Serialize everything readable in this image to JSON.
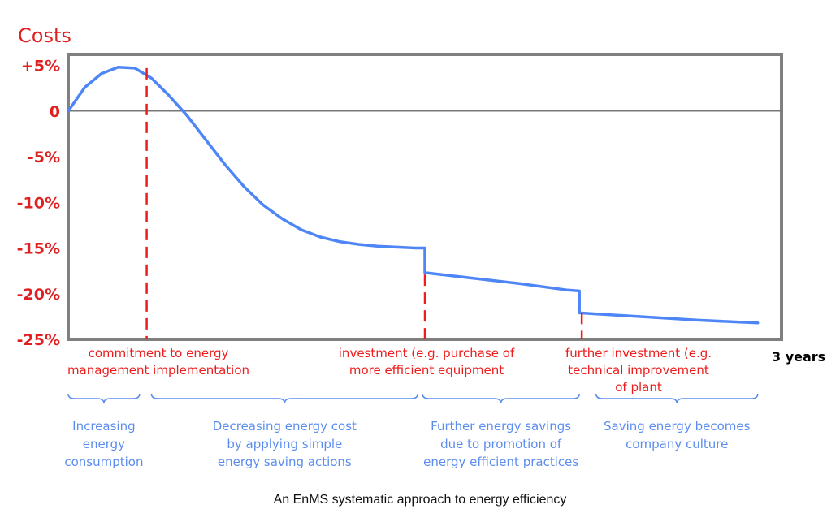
{
  "chart_data": {
    "type": "line",
    "ylabel": "Costs",
    "yticks": [
      {
        "value": 5,
        "label": "+5%"
      },
      {
        "value": 0,
        "label": "0"
      },
      {
        "value": -5,
        "label": "-5%"
      },
      {
        "value": -10,
        "label": "-10%"
      },
      {
        "value": -15,
        "label": "-15%"
      },
      {
        "value": -20,
        "label": "-20%"
      },
      {
        "value": -25,
        "label": "-25%"
      }
    ],
    "ylim": [
      -25,
      6.2
    ],
    "xlim": [
      0,
      3
    ],
    "x_end_label": "3 years",
    "series": [
      {
        "x": [
          0,
          0.07,
          0.14,
          0.21,
          0.28,
          0.35,
          0.42,
          0.5,
          0.58,
          0.66,
          0.74,
          0.82,
          0.9,
          0.98,
          1.06,
          1.14,
          1.22,
          1.3,
          1.38,
          1.46,
          1.5,
          1.5,
          1.7,
          1.9,
          2.1,
          2.15,
          2.15,
          2.4,
          2.65,
          2.9
        ],
        "values": [
          0,
          2.6,
          4.1,
          4.8,
          4.7,
          3.6,
          1.8,
          -0.5,
          -3.2,
          -5.9,
          -8.3,
          -10.3,
          -11.8,
          -13.0,
          -13.8,
          -14.3,
          -14.6,
          -14.8,
          -14.9,
          -15.0,
          -15.0,
          -17.7,
          -18.3,
          -18.9,
          -19.6,
          -19.7,
          -22.1,
          -22.5,
          -22.9,
          -23.2
        ]
      }
    ],
    "events": [
      {
        "x": 0.3,
        "lines": [
          "commitment to energy",
          "management implementation"
        ]
      },
      {
        "x": 1.3,
        "lines": [
          "investment (e.g. purchase of",
          "more efficient equipment"
        ]
      },
      {
        "x": 1.96,
        "lines": [
          "further investment (e.g.",
          "technical improvement",
          "of plant"
        ]
      }
    ],
    "event_markers": [
      {
        "x": 0.33,
        "y_top": 4.7
      },
      {
        "x": 1.5,
        "y_top": -17.9
      },
      {
        "x": 2.16,
        "y_top": -22.1
      }
    ],
    "phases": [
      {
        "x0": 0.0,
        "x1": 0.3,
        "lines": [
          "Increasing",
          "energy",
          "consumption"
        ]
      },
      {
        "x0": 0.35,
        "x1": 1.47,
        "lines": [
          "Decreasing energy cost",
          "by applying simple",
          "energy saving actions"
        ]
      },
      {
        "x0": 1.49,
        "x1": 2.15,
        "lines": [
          "Further energy savings",
          "due to promotion of",
          "energy efficient practices"
        ]
      },
      {
        "x0": 2.22,
        "x1": 2.9,
        "lines": [
          "Saving energy becomes",
          "company culture"
        ]
      }
    ],
    "grid": false,
    "colors": {
      "line": "#4f86f7",
      "event": "#ee1c1c",
      "axis_text": "#e02020",
      "frame": "#808080",
      "zero_line": "#777777",
      "phase": "#5b8def"
    }
  },
  "caption": "An EnMS systematic approach to energy efficiency"
}
